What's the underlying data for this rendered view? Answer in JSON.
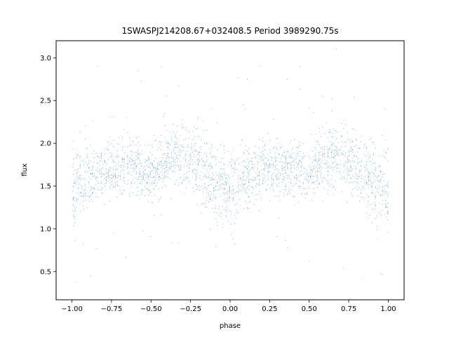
{
  "chart_data": {
    "type": "scatter",
    "title": "1SWASPJ214208.67+032408.5 Period 3989290.75s",
    "xlabel": "phase",
    "ylabel": "flux",
    "xlim": [
      -1.1,
      1.1
    ],
    "ylim": [
      0.17,
      3.2
    ],
    "x_ticks": [
      -1.0,
      -0.75,
      -0.5,
      -0.25,
      0.0,
      0.25,
      0.5,
      0.75,
      1.0
    ],
    "x_tick_labels": [
      "−1.00",
      "−0.75",
      "−0.50",
      "−0.25",
      "0.00",
      "0.25",
      "0.50",
      "0.75",
      "1.00"
    ],
    "y_ticks": [
      0.5,
      1.0,
      1.5,
      2.0,
      2.5,
      3.0
    ],
    "y_tick_labels": [
      "0.5",
      "1.0",
      "1.5",
      "2.0",
      "2.5",
      "3.0"
    ],
    "grid": false,
    "marker_color": "#1f77b4",
    "phase_range": [
      -1.0,
      1.0
    ],
    "series": [
      {
        "x_profile": [
          -1.0,
          -0.9,
          -0.8,
          -0.7,
          -0.6,
          -0.5,
          -0.4,
          -0.3,
          -0.2,
          -0.1,
          0.0,
          0.1,
          0.2,
          0.3,
          0.4,
          0.5,
          0.6,
          0.7,
          0.8,
          0.9,
          1.0
        ],
        "flux_median": [
          1.45,
          1.65,
          1.7,
          1.72,
          1.7,
          1.65,
          1.82,
          1.85,
          1.75,
          1.55,
          1.45,
          1.62,
          1.7,
          1.72,
          1.7,
          1.65,
          1.82,
          1.85,
          1.75,
          1.55,
          1.45
        ],
        "flux_spread": [
          0.45,
          0.35,
          0.3,
          0.3,
          0.3,
          0.3,
          0.35,
          0.35,
          0.35,
          0.4,
          0.45,
          0.35,
          0.3,
          0.3,
          0.3,
          0.3,
          0.35,
          0.35,
          0.35,
          0.4,
          0.45
        ]
      }
    ]
  }
}
